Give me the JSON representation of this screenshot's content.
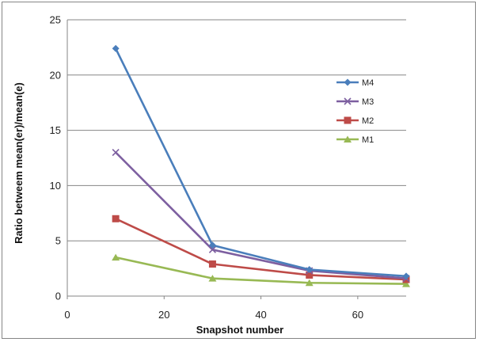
{
  "chart_data": {
    "type": "line",
    "title": "",
    "xlabel": "Snapshot number",
    "ylabel": "Ratio betweem  mean(er)/mean(e)",
    "xlim": [
      0,
      70
    ],
    "ylim": [
      0,
      25
    ],
    "xticks": [
      0,
      20,
      40,
      60
    ],
    "yticks": [
      0,
      5,
      10,
      15,
      20,
      25
    ],
    "grid": "horizontal",
    "legend_position": "right",
    "series": [
      {
        "name": "M4",
        "color": "#4a7ebb",
        "marker": "diamond",
        "x": [
          10,
          30,
          50,
          70
        ],
        "y": [
          22.4,
          4.6,
          2.4,
          1.8
        ]
      },
      {
        "name": "M3",
        "color": "#7d5fa0",
        "marker": "x",
        "x": [
          10,
          30,
          50,
          70
        ],
        "y": [
          13.0,
          4.2,
          2.3,
          1.6
        ]
      },
      {
        "name": "M2",
        "color": "#be4b48",
        "marker": "square",
        "x": [
          10,
          30,
          50,
          70
        ],
        "y": [
          7.0,
          2.9,
          1.9,
          1.5
        ]
      },
      {
        "name": "M1",
        "color": "#98b954",
        "marker": "triangle",
        "x": [
          10,
          30,
          50,
          70
        ],
        "y": [
          3.5,
          1.6,
          1.2,
          1.1
        ]
      }
    ]
  }
}
